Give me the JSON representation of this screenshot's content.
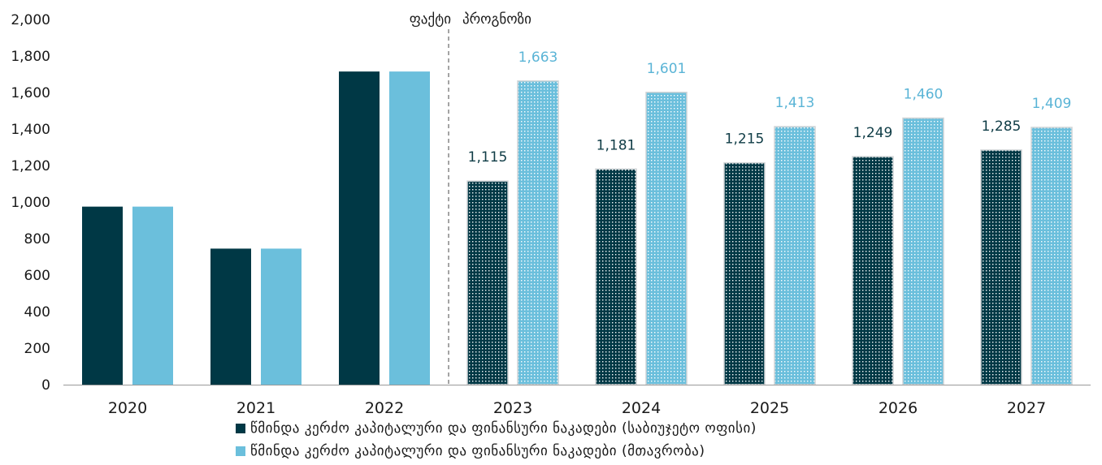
{
  "chart_data": {
    "type": "bar",
    "categories": [
      "2020",
      "2021",
      "2022",
      "2023",
      "2024",
      "2025",
      "2026",
      "2027"
    ],
    "ylim": [
      0,
      2000
    ],
    "yticks": [
      "0",
      "200",
      "400",
      "600",
      "800",
      "1,000",
      "1,200",
      "1,400",
      "1,600",
      "1,800",
      "2,000"
    ],
    "actual_label": "ფაქტი",
    "forecast_label": "პროგნოზი",
    "forecast_start_index": 3,
    "series": [
      {
        "name": "წმინდა კერძო კაპიტალური და ფინანსური ნაკადები (საბიუჯეტო ოფისი)",
        "color": "#003845",
        "values": [
          975,
          745,
          1715,
          1115,
          1181,
          1215,
          1249,
          1285
        ],
        "labels": [
          "",
          "",
          "",
          "1,115",
          "1,181",
          "1,215",
          "1,249",
          "1,285"
        ]
      },
      {
        "name": "წმინდა კერძო კაპიტალური და ფინანსური ნაკადები (მთავრობა)",
        "color": "#6bbfdc",
        "values": [
          975,
          745,
          1715,
          1663,
          1601,
          1413,
          1460,
          1409
        ],
        "labels": [
          "",
          "",
          "",
          "1,663",
          "1,601",
          "1,413",
          "1,460",
          "1,409"
        ]
      }
    ]
  }
}
